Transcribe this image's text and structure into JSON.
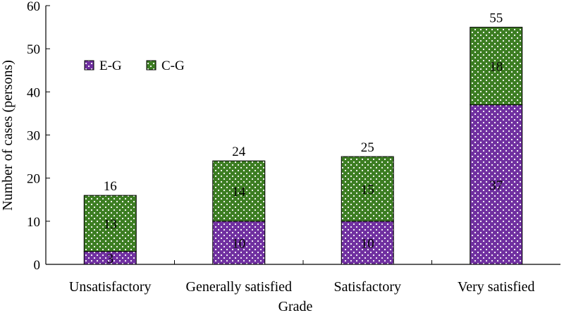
{
  "chart_data": {
    "type": "bar",
    "stacked": true,
    "title": "",
    "xlabel": "Grade",
    "ylabel": "Number of cases (persons)",
    "ylim": [
      0,
      60
    ],
    "yticks": [
      0,
      10,
      20,
      30,
      40,
      50,
      60
    ],
    "categories": [
      "Unsatisfactory",
      "Generally satisfied",
      "Satisfactory",
      "Very satisfied"
    ],
    "series": [
      {
        "name": "E-G",
        "values": [
          3,
          10,
          10,
          37
        ],
        "color": "#7030a0",
        "dot_color": "#ffffff"
      },
      {
        "name": "C-G",
        "values": [
          13,
          14,
          15,
          18
        ],
        "color": "#3c7d22",
        "dot_color": "#ffffff"
      }
    ],
    "totals": [
      16,
      24,
      25,
      55
    ],
    "legend": {
      "position": "top-left"
    },
    "grid": false
  }
}
